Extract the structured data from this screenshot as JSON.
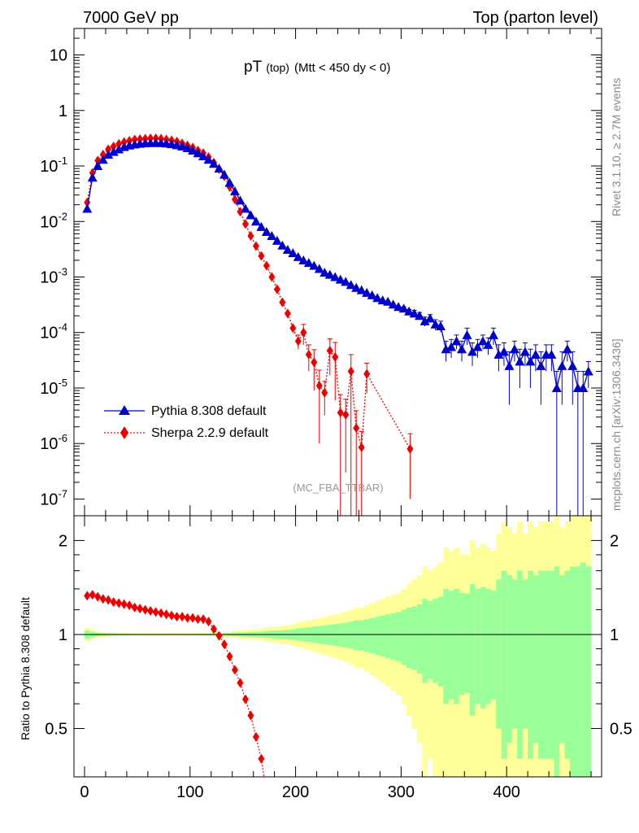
{
  "header": {
    "left_title": "7000 GeV pp",
    "right_title": "Top (parton level)"
  },
  "plot_title": {
    "main": "pT",
    "sub1": "(top)",
    "sub2": "(Mtt < 450 dy < 0)"
  },
  "side_labels": {
    "rivet": "Rivet 3.1.10, ≥ 2.7M events",
    "mcplots": "mcplots.cern.ch [arXiv:1306.3436]"
  },
  "analysis_tag": "(MC_FBA_TTBAR)",
  "ratio_ylabel": "Ratio to Pythia 8.308 default",
  "colors": {
    "pythia": "#0000cc",
    "sherpa": "#ee0000",
    "band_outer": "#ffff99",
    "band_inner": "#99ff99"
  },
  "chart_data": [
    {
      "type": "line",
      "title": "pT (top) (Mtt < 450 dy < 0)",
      "xlabel": "",
      "ylabel": "",
      "xlim": [
        -10,
        490
      ],
      "ylim": [
        5e-08,
        30
      ],
      "yscale": "log",
      "y_ticks": [
        {
          "v": 1e-07,
          "base": "10",
          "exp": "-7"
        },
        {
          "v": 1e-06,
          "base": "10",
          "exp": "-6"
        },
        {
          "v": 1e-05,
          "base": "10",
          "exp": "-5"
        },
        {
          "v": 0.0001,
          "base": "10",
          "exp": "-4"
        },
        {
          "v": 0.001,
          "base": "10",
          "exp": "-3"
        },
        {
          "v": 0.01,
          "base": "10",
          "exp": "-2"
        },
        {
          "v": 0.1,
          "base": "10",
          "exp": "-1"
        },
        {
          "v": 1,
          "base": "1",
          "exp": ""
        },
        {
          "v": 10,
          "base": "10",
          "exp": ""
        }
      ],
      "legend": "bottom-left",
      "series": [
        {
          "name": "Pythia 8.308 default",
          "marker": "triangle",
          "x": [
            2.5,
            7.5,
            12.5,
            17.5,
            22.5,
            27.5,
            32.5,
            37.5,
            42.5,
            47.5,
            52.5,
            57.5,
            62.5,
            67.5,
            72.5,
            77.5,
            82.5,
            87.5,
            92.5,
            97.5,
            102.5,
            107.5,
            112.5,
            117.5,
            122.5,
            127.5,
            132.5,
            137.5,
            142.5,
            147.5,
            152.5,
            157.5,
            162.5,
            167.5,
            172.5,
            177.5,
            182.5,
            187.5,
            192.5,
            197.5,
            202.5,
            207.5,
            212.5,
            217.5,
            222.5,
            227.5,
            232.5,
            237.5,
            242.5,
            247.5,
            252.5,
            257.5,
            262.5,
            267.5,
            272.5,
            277.5,
            282.5,
            287.5,
            292.5,
            297.5,
            302.5,
            307.5,
            312.5,
            317.5,
            322.5,
            327.5,
            332.5,
            337.5,
            342.5,
            347.5,
            352.5,
            357.5,
            362.5,
            367.5,
            372.5,
            377.5,
            382.5,
            387.5,
            392.5,
            397.5,
            402.5,
            407.5,
            412.5,
            417.5,
            422.5,
            427.5,
            432.5,
            437.5,
            442.5,
            447.5,
            452.5,
            457.5,
            462.5,
            467.5,
            472.5,
            477.5
          ],
          "values": [
            0.017,
            0.062,
            0.1,
            0.13,
            0.16,
            0.18,
            0.2,
            0.22,
            0.235,
            0.245,
            0.252,
            0.257,
            0.26,
            0.261,
            0.26,
            0.255,
            0.248,
            0.238,
            0.225,
            0.21,
            0.19,
            0.17,
            0.15,
            0.13,
            0.11,
            0.09,
            0.07,
            0.05,
            0.035,
            0.024,
            0.017,
            0.013,
            0.01,
            0.008,
            0.0065,
            0.0055,
            0.0045,
            0.0037,
            0.0031,
            0.0027,
            0.0023,
            0.002,
            0.0018,
            0.0016,
            0.0014,
            0.0012,
            0.0011,
            0.001,
            0.0009,
            0.00082,
            0.00072,
            0.00064,
            0.00058,
            0.00052,
            0.00047,
            0.00042,
            0.00038,
            0.00036,
            0.00032,
            0.00029,
            0.00027,
            0.00024,
            0.00022,
            0.0002,
            0.00016,
            0.00018,
            0.00014,
            0.00013,
            5e-05,
            5.5e-05,
            7e-05,
            5e-05,
            9e-05,
            4.5e-05,
            5.5e-05,
            7e-05,
            6e-05,
            9e-05,
            4e-05,
            4.5e-05,
            2.5e-05,
            5e-05,
            3e-05,
            4.5e-05,
            3e-05,
            4e-05,
            2.5e-05,
            4e-05,
            4e-05,
            1e-05,
            2.5e-05,
            5e-05,
            2.5e-05,
            1e-05,
            1e-05,
            2e-05
          ],
          "errors": [
            0,
            0,
            0,
            0,
            0,
            0,
            0,
            0,
            0,
            0,
            0,
            0,
            0,
            0,
            0,
            0,
            0,
            0,
            0,
            0,
            0,
            0,
            0,
            0,
            0,
            0,
            0,
            0,
            0,
            0,
            0,
            0,
            0,
            0,
            0,
            0,
            0,
            0,
            0,
            0,
            0,
            0,
            0,
            0,
            0,
            0,
            0,
            0,
            0,
            0,
            0,
            0,
            0,
            0,
            0,
            0,
            0,
            0,
            0,
            0,
            2e-05,
            2e-05,
            3e-05,
            3e-05,
            3e-05,
            3e-05,
            3e-05,
            3e-05,
            2e-05,
            2e-05,
            2e-05,
            2e-05,
            3e-05,
            2e-05,
            2e-05,
            2e-05,
            2e-05,
            3e-05,
            2e-05,
            2e-05,
            2e-05,
            2e-05,
            2e-05,
            2e-05,
            2e-05,
            2e-05,
            2e-05,
            2e-05,
            2e-05,
            1e-05,
            2e-05,
            2e-05,
            2e-05,
            1e-05,
            1e-05,
            1e-05
          ]
        },
        {
          "name": "Sherpa 2.2.9 default",
          "marker": "diamond",
          "x": [
            2.5,
            7.5,
            12.5,
            17.5,
            22.5,
            27.5,
            32.5,
            37.5,
            42.5,
            47.5,
            52.5,
            57.5,
            62.5,
            67.5,
            72.5,
            77.5,
            82.5,
            87.5,
            92.5,
            97.5,
            102.5,
            107.5,
            112.5,
            117.5,
            122.5,
            127.5,
            132.5,
            137.5,
            142.5,
            147.5,
            152.5,
            157.5,
            162.5,
            167.5,
            172.5,
            177.5,
            182.5,
            187.5,
            192.5,
            197.5,
            202.5,
            207.5,
            212.5,
            217.5,
            222.5,
            227.5,
            232.5,
            237.5,
            242.5,
            247.5,
            252.5,
            257.5,
            262.5,
            267.5,
            308.5
          ],
          "values": [
            0.022,
            0.075,
            0.125,
            0.16,
            0.2,
            0.225,
            0.25,
            0.27,
            0.285,
            0.3,
            0.305,
            0.31,
            0.315,
            0.315,
            0.31,
            0.3,
            0.29,
            0.275,
            0.255,
            0.235,
            0.215,
            0.19,
            0.17,
            0.145,
            0.115,
            0.088,
            0.065,
            0.042,
            0.025,
            0.015,
            0.009,
            0.0055,
            0.0036,
            0.0024,
            0.0016,
            0.001,
            0.0006,
            0.00035,
            0.00022,
            0.00012,
            7e-05,
            0.0001,
            4e-05,
            2.9e-05,
            1.1e-05,
            8.2e-06,
            4.7e-05,
            3.6e-05,
            3.6e-06,
            3.3e-06,
            2e-05,
            1.9e-06,
            8.5e-07,
            1.8e-05,
            8e-07
          ],
          "errors": [
            0,
            0,
            0,
            0,
            0,
            0,
            0,
            0,
            0,
            0,
            0,
            0,
            0,
            0,
            0,
            0,
            0,
            0,
            0,
            0,
            0,
            0,
            0,
            0,
            0,
            0,
            0,
            0,
            0,
            0,
            0,
            0,
            0,
            0,
            0,
            0,
            0,
            0,
            0,
            0,
            2e-05,
            4e-05,
            2e-05,
            2e-05,
            1e-05,
            5e-06,
            3e-05,
            3e-05,
            4e-06,
            3e-06,
            2e-05,
            2e-06,
            8e-07,
            1e-05,
            7e-07
          ]
        }
      ]
    },
    {
      "type": "line",
      "title": "",
      "xlabel": "",
      "ylabel": "Ratio to Pythia 8.308 default",
      "xlim": [
        -10,
        490
      ],
      "ylim": [
        0.35,
        2.4
      ],
      "yscale": "log",
      "y_ticks": [
        0.5,
        1,
        2
      ],
      "x_ticks": [
        0,
        100,
        200,
        300,
        400
      ],
      "band_x": [
        2.5,
        7.5,
        12.5,
        17.5,
        22.5,
        27.5,
        32.5,
        37.5,
        42.5,
        47.5,
        52.5,
        57.5,
        62.5,
        67.5,
        72.5,
        77.5,
        82.5,
        87.5,
        92.5,
        97.5,
        102.5,
        107.5,
        112.5,
        117.5,
        122.5,
        127.5,
        132.5,
        137.5,
        142.5,
        147.5,
        152.5,
        157.5,
        162.5,
        167.5,
        172.5,
        177.5,
        182.5,
        187.5,
        192.5,
        197.5,
        202.5,
        207.5,
        212.5,
        217.5,
        222.5,
        227.5,
        232.5,
        237.5,
        242.5,
        247.5,
        252.5,
        257.5,
        262.5,
        267.5,
        272.5,
        277.5,
        282.5,
        287.5,
        292.5,
        297.5,
        302.5,
        307.5,
        312.5,
        317.5,
        322.5,
        327.5,
        332.5,
        337.5,
        342.5,
        347.5,
        352.5,
        357.5,
        362.5,
        367.5,
        372.5,
        377.5,
        382.5,
        387.5,
        392.5,
        397.5,
        402.5,
        407.5,
        412.5,
        417.5,
        422.5,
        427.5,
        432.5,
        437.5,
        442.5,
        447.5,
        452.5,
        457.5,
        462.5,
        467.5,
        472.5,
        477.5
      ],
      "band_inner": [
        0.03,
        0.02,
        0.012,
        0.01,
        0.008,
        0.007,
        0.006,
        0.006,
        0.005,
        0.005,
        0.005,
        0.005,
        0.005,
        0.005,
        0.005,
        0.005,
        0.005,
        0.005,
        0.005,
        0.005,
        0.005,
        0.005,
        0.006,
        0.006,
        0.007,
        0.008,
        0.009,
        0.01,
        0.012,
        0.014,
        0.016,
        0.018,
        0.02,
        0.022,
        0.025,
        0.028,
        0.03,
        0.032,
        0.035,
        0.04,
        0.045,
        0.05,
        0.055,
        0.06,
        0.065,
        0.07,
        0.075,
        0.08,
        0.085,
        0.09,
        0.1,
        0.11,
        0.11,
        0.12,
        0.13,
        0.14,
        0.15,
        0.16,
        0.17,
        0.18,
        0.2,
        0.22,
        0.23,
        0.25,
        0.3,
        0.28,
        0.3,
        0.32,
        0.4,
        0.38,
        0.4,
        0.36,
        0.35,
        0.45,
        0.4,
        0.42,
        0.4,
        0.38,
        0.5,
        0.6,
        0.55,
        0.5,
        0.6,
        0.5,
        0.6,
        0.55,
        0.6,
        0.6,
        0.6,
        0.65,
        0.55,
        0.6,
        0.65,
        0.65,
        0.7,
        0.65
      ],
      "band_outer": [
        0.05,
        0.035,
        0.022,
        0.018,
        0.015,
        0.013,
        0.012,
        0.011,
        0.01,
        0.01,
        0.01,
        0.01,
        0.01,
        0.01,
        0.01,
        0.01,
        0.01,
        0.01,
        0.01,
        0.01,
        0.01,
        0.01,
        0.012,
        0.012,
        0.014,
        0.016,
        0.018,
        0.02,
        0.024,
        0.028,
        0.032,
        0.036,
        0.04,
        0.045,
        0.05,
        0.055,
        0.06,
        0.065,
        0.07,
        0.08,
        0.09,
        0.1,
        0.11,
        0.12,
        0.13,
        0.14,
        0.15,
        0.16,
        0.17,
        0.18,
        0.2,
        0.22,
        0.22,
        0.24,
        0.26,
        0.28,
        0.3,
        0.32,
        0.34,
        0.36,
        0.4,
        0.45,
        0.5,
        0.55,
        0.65,
        0.6,
        0.65,
        0.7,
        0.9,
        0.85,
        0.9,
        0.8,
        0.8,
        1,
        0.9,
        0.95,
        0.9,
        0.85,
        1.1,
        1.3,
        1.2,
        1.1,
        1.3,
        1.1,
        1.3,
        1.2,
        1.3,
        1.3,
        1.3,
        1.4,
        1.2,
        1.3,
        1.4,
        1.4,
        1.5,
        1.4
      ],
      "series": [
        {
          "name": "Sherpa 2.2.9 default",
          "marker": "diamond",
          "x": [
            2.5,
            7.5,
            12.5,
            17.5,
            22.5,
            27.5,
            32.5,
            37.5,
            42.5,
            47.5,
            52.5,
            57.5,
            62.5,
            67.5,
            72.5,
            77.5,
            82.5,
            87.5,
            92.5,
            97.5,
            102.5,
            107.5,
            112.5,
            117.5,
            122.5,
            127.5,
            132.5,
            137.5,
            142.5,
            147.5,
            152.5,
            157.5,
            162.5,
            167.5
          ],
          "values": [
            1.33,
            1.34,
            1.32,
            1.3,
            1.29,
            1.27,
            1.26,
            1.25,
            1.24,
            1.22,
            1.21,
            1.2,
            1.19,
            1.18,
            1.17,
            1.16,
            1.15,
            1.14,
            1.14,
            1.13,
            1.13,
            1.12,
            1.12,
            1.1,
            1.04,
            0.99,
            0.93,
            0.85,
            0.77,
            0.7,
            0.62,
            0.55,
            0.47,
            0.4
          ]
        }
      ]
    }
  ]
}
